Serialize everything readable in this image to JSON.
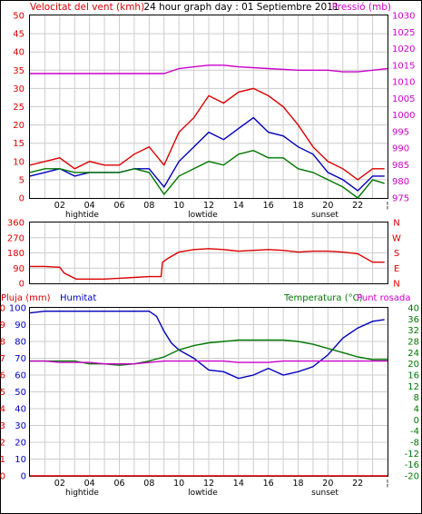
{
  "header": {
    "wind_label": "Velocitat del vent (kmh)",
    "title": "24 hour graph day : 01 Septiembre 2011",
    "pressure_label": "Pressió (mb)"
  },
  "colors": {
    "wind": "#dd0000",
    "avg": "#0000bb",
    "green": "#007700",
    "pressure": "#cc00cc",
    "grid": "#cccccc",
    "frame": "#000000"
  },
  "hour_labels": [
    "02",
    "04",
    "06",
    "08",
    "10",
    "12",
    "14",
    "16",
    "18",
    "20",
    "22"
  ],
  "event_labels": {
    "hightide": "hightide",
    "lowtide": "lowtide",
    "sunset": "sunset"
  },
  "chart_data": [
    {
      "type": "line",
      "panel": "wind_pressure",
      "y_left": {
        "label": "Velocitat del vent (kmh)",
        "ticks": [
          0,
          5,
          10,
          15,
          20,
          25,
          30,
          35,
          40,
          45,
          50
        ],
        "range": [
          0,
          50
        ]
      },
      "y_right": {
        "label": "Pressió (mb)",
        "ticks": [
          975,
          980,
          985,
          990,
          995,
          1000,
          1005,
          1010,
          1015,
          1020,
          1025,
          1030
        ],
        "range": [
          975,
          1030
        ]
      },
      "x_range_hours": [
        0,
        24
      ],
      "series": [
        {
          "key": "gust",
          "color": "#dd0000",
          "x": [
            0,
            1,
            2,
            3,
            4,
            5,
            6,
            7,
            8,
            9,
            10,
            11,
            12,
            13,
            14,
            15,
            16,
            17,
            18,
            19,
            20,
            21,
            22,
            23,
            23.8
          ],
          "y": [
            9,
            10,
            11,
            8,
            10,
            9,
            9,
            12,
            14,
            9,
            18,
            22,
            28,
            26,
            29,
            30,
            28,
            25,
            20,
            14,
            10,
            8,
            5,
            8,
            8
          ]
        },
        {
          "key": "average",
          "color": "#0000bb",
          "x": [
            0,
            1,
            2,
            3,
            4,
            5,
            6,
            7,
            8,
            9,
            10,
            11,
            12,
            13,
            14,
            15,
            16,
            17,
            18,
            19,
            20,
            21,
            22,
            23,
            23.8
          ],
          "y": [
            6,
            7,
            8,
            6,
            7,
            7,
            7,
            8,
            8,
            3,
            10,
            14,
            18,
            16,
            19,
            22,
            18,
            17,
            14,
            12,
            7,
            5,
            2,
            6,
            6
          ]
        },
        {
          "key": "green",
          "color": "#007700",
          "x": [
            0,
            1,
            2,
            3,
            4,
            5,
            6,
            7,
            8,
            9,
            10,
            11,
            12,
            13,
            14,
            15,
            16,
            17,
            18,
            19,
            20,
            21,
            22,
            23,
            23.8
          ],
          "y": [
            7,
            8,
            8,
            7,
            7,
            7,
            7,
            8,
            7,
            1,
            6,
            8,
            10,
            9,
            12,
            13,
            11,
            11,
            8,
            7,
            5,
            3,
            0,
            5,
            4
          ]
        },
        {
          "key": "pressure",
          "color": "#cc00cc",
          "x": [
            0,
            2,
            4,
            6,
            8,
            9,
            10,
            11,
            12,
            13,
            14,
            16,
            18,
            20,
            21,
            22,
            23,
            24
          ],
          "y": [
            1012.5,
            1012.5,
            1012.5,
            1012.5,
            1012.5,
            1012.5,
            1014,
            1014.5,
            1015,
            1015,
            1014.5,
            1014,
            1013.5,
            1013.5,
            1013,
            1013,
            1013.5,
            1014
          ]
        }
      ]
    },
    {
      "type": "line",
      "panel": "wind_direction",
      "y_left": {
        "ticks": [
          0,
          90,
          180,
          270,
          360
        ],
        "range": [
          0,
          360
        ]
      },
      "y_right": {
        "ticks": [
          "N",
          "W",
          "S",
          "E",
          "N"
        ]
      },
      "x_range_hours": [
        0,
        24
      ],
      "series": [
        {
          "key": "direction",
          "color": "#dd0000",
          "x": [
            0,
            1,
            2,
            2.3,
            3.1,
            4,
            5,
            6,
            7,
            8,
            8.8,
            8.9,
            9.3,
            10,
            11,
            12,
            13,
            14,
            15,
            16,
            17,
            18,
            19,
            20,
            21,
            22,
            23,
            23.8
          ],
          "y": [
            100,
            100,
            95,
            60,
            25,
            25,
            25,
            30,
            35,
            40,
            40,
            125,
            150,
            185,
            200,
            205,
            200,
            190,
            195,
            200,
            195,
            185,
            190,
            190,
            185,
            175,
            125,
            125
          ]
        }
      ]
    },
    {
      "type": "line",
      "panel": "temp_humidity",
      "y_left": {
        "labels": [
          "Pluja (mm)",
          "Humitat"
        ],
        "ticks_rain": [
          0,
          1,
          2,
          3,
          4,
          5,
          6,
          7,
          8,
          9,
          10
        ],
        "ticks_humidity": [
          0,
          10,
          20,
          30,
          40,
          50,
          60,
          70,
          80,
          90,
          100
        ]
      },
      "y_right": {
        "labels": [
          "Temperatura (°C)",
          "Punt rosada"
        ],
        "ticks": [
          -20,
          -16,
          -12,
          -8,
          -4,
          0,
          4,
          8,
          12,
          16,
          20,
          24,
          28,
          32,
          36,
          40
        ],
        "range": [
          -20,
          40
        ]
      },
      "x_range_hours": [
        0,
        24
      ],
      "series": [
        {
          "key": "humitat",
          "color": "#0000bb",
          "x": [
            0,
            1,
            2,
            3,
            4,
            5,
            6,
            7,
            8,
            8.5,
            9,
            9.5,
            10,
            11,
            12,
            13,
            14,
            15,
            16,
            17,
            18,
            19,
            20,
            21,
            22,
            23,
            23.8
          ],
          "y": [
            97,
            98,
            98,
            98,
            98,
            98,
            98,
            98,
            98,
            95,
            86,
            79,
            75,
            70,
            63,
            62,
            58,
            60,
            64,
            60,
            62,
            65,
            72,
            82,
            88,
            92,
            93
          ]
        },
        {
          "key": "temperatura",
          "color": "#007700",
          "x": [
            0,
            1,
            2,
            3,
            4,
            5,
            6,
            7,
            8,
            9,
            10,
            11,
            12,
            13,
            14,
            15,
            16,
            17,
            18,
            19,
            20,
            21,
            22,
            23,
            24
          ],
          "y": [
            21,
            21,
            21,
            21,
            20,
            20,
            19.5,
            20,
            21,
            22.5,
            25,
            26.5,
            27.5,
            28,
            28.5,
            28.5,
            28.5,
            28.5,
            28,
            27,
            25.5,
            24,
            22.5,
            21.5,
            21.5
          ]
        },
        {
          "key": "punt_rosada",
          "color": "#cc00cc",
          "x": [
            0,
            1,
            2,
            3,
            4,
            5,
            6,
            7,
            8,
            9,
            10,
            11,
            12,
            13,
            14,
            15,
            16,
            17,
            18,
            19,
            20,
            21,
            22,
            23,
            24
          ],
          "y": [
            21,
            21,
            20.5,
            20.5,
            20.5,
            20,
            20,
            20,
            20.5,
            21,
            21,
            21,
            21,
            21,
            20.5,
            20.5,
            20.5,
            21,
            21,
            21,
            21,
            21,
            21,
            21,
            21
          ]
        },
        {
          "key": "pluja",
          "color": "#dd0000",
          "x": [
            0,
            24
          ],
          "y": [
            0,
            0
          ]
        }
      ]
    }
  ],
  "panel3_header": {
    "rain_label": "Pluja (mm)",
    "humidity_label": "Humitat",
    "temp_label": "Temperatura (°C)",
    "dew_label": "Punt rosada"
  }
}
